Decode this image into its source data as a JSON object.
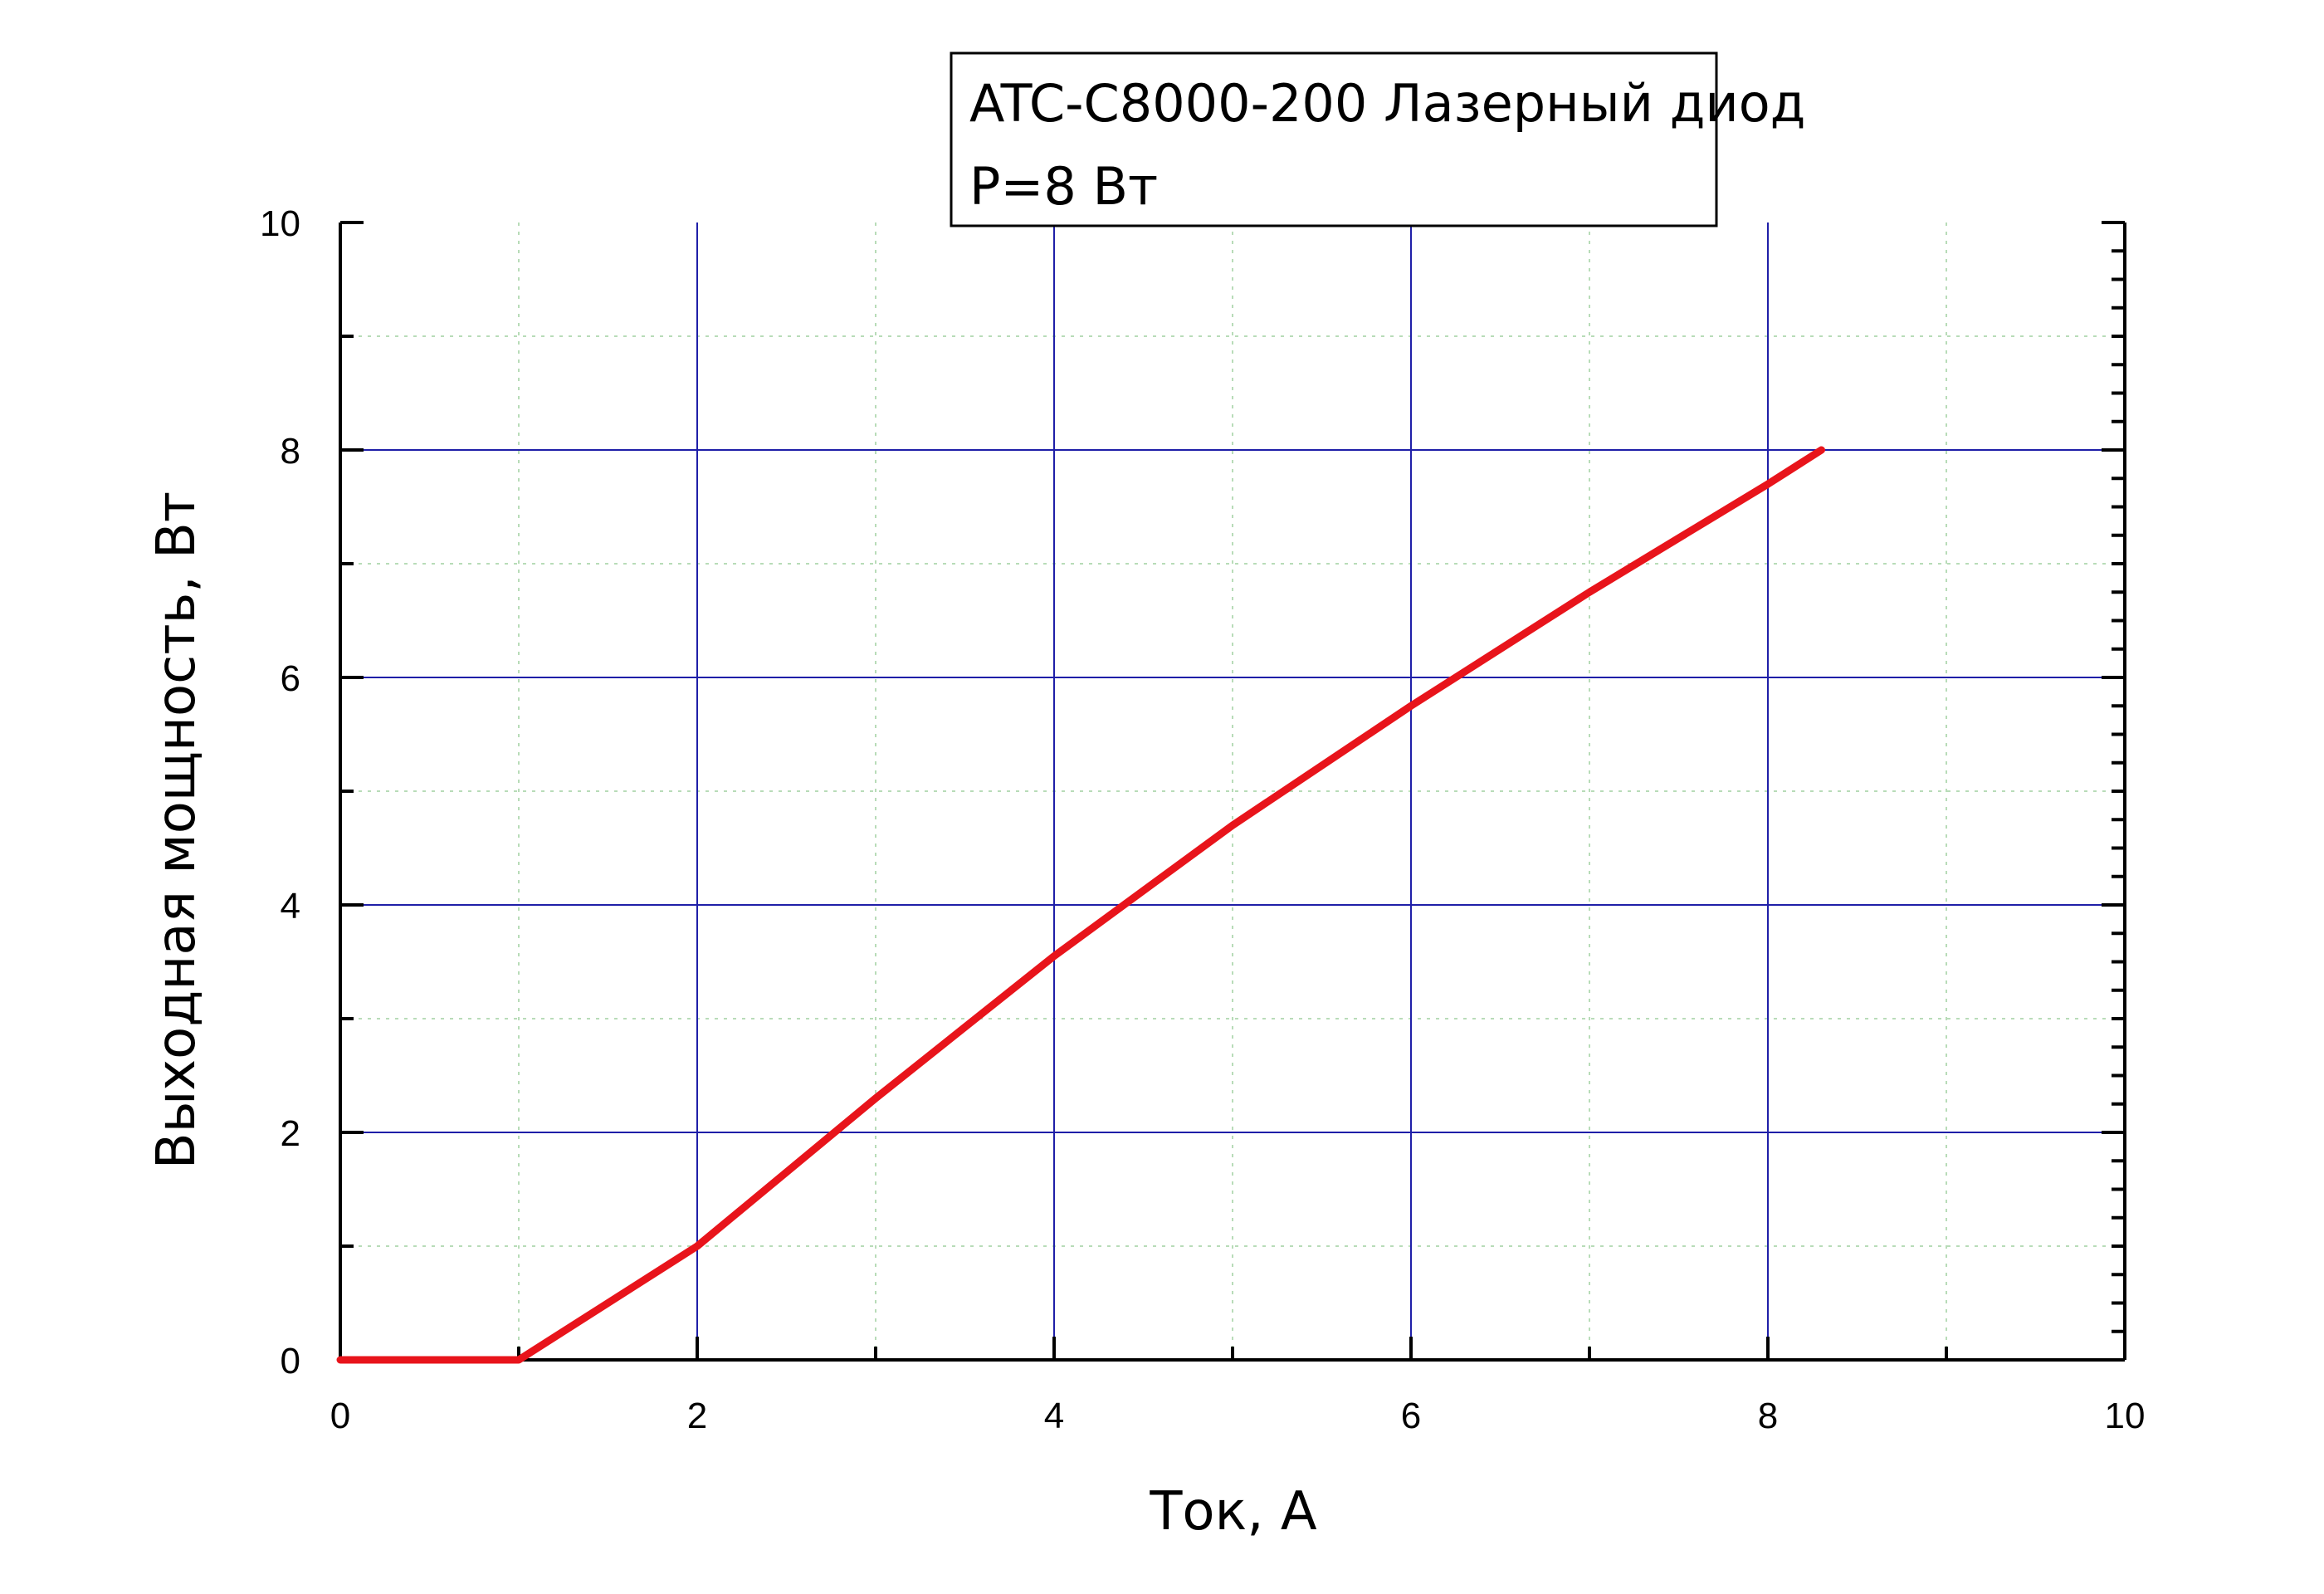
{
  "chart_data": {
    "type": "line",
    "legend_lines": [
      "ATC-C8000-200 Лазерный диод",
      "P=8 Вт"
    ],
    "xlabel": "Ток, А",
    "ylabel": "Выходная мощность, Вт",
    "xlim": [
      0,
      10
    ],
    "ylim": [
      0,
      10
    ],
    "x_ticks": [
      "0",
      "2",
      "4",
      "6",
      "8",
      "10"
    ],
    "y_ticks": [
      "0",
      "2",
      "4",
      "6",
      "8",
      "10"
    ],
    "grid": true,
    "legend_position": "top",
    "series": [
      {
        "color": "#e8141b",
        "points": [
          [
            0,
            0
          ],
          [
            1,
            0
          ],
          [
            2,
            1.0
          ],
          [
            3,
            2.3
          ],
          [
            4,
            3.55
          ],
          [
            5,
            4.7
          ],
          [
            6,
            5.75
          ],
          [
            7,
            6.75
          ],
          [
            8,
            7.7
          ],
          [
            8.3,
            8.0
          ]
        ]
      }
    ],
    "colors": {
      "major_grid": "#1f1fa8",
      "minor_grid": "#b8dcb8",
      "axes": "#000000"
    }
  }
}
